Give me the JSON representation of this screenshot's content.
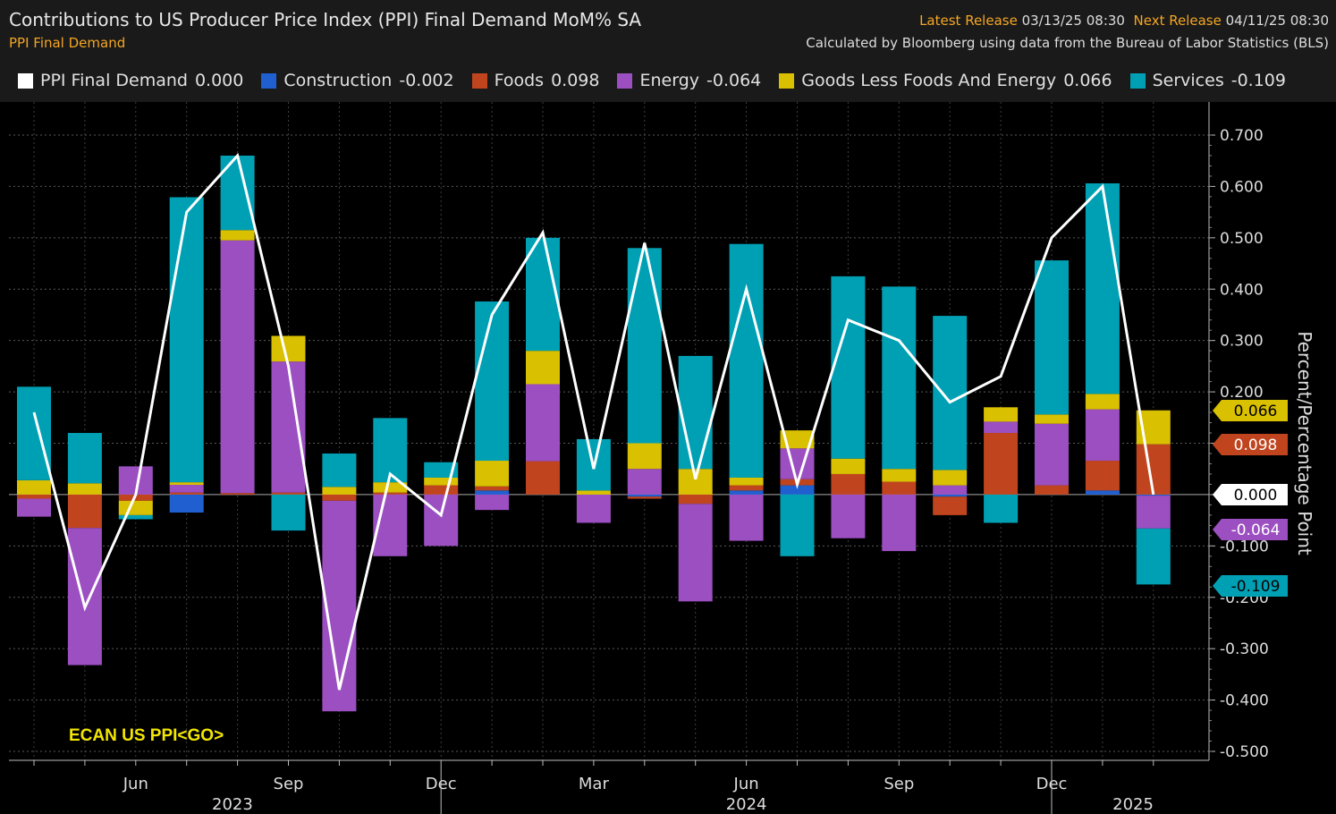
{
  "header": {
    "title": "Contributions to US Producer Price Index (PPI) Final Demand MoM% SA",
    "subtitle": "PPI Final Demand",
    "latest_label": "Latest Release",
    "latest_value": "03/13/25 08:30",
    "next_label": "Next Release",
    "next_value": "04/11/25 08:30",
    "source": "Calculated by Bloomberg using data from the Bureau of Labor Statistics (BLS)"
  },
  "legend": [
    {
      "name": "PPI Final Demand",
      "value": "0.000",
      "color": "#ffffff"
    },
    {
      "name": "Construction",
      "value": "-0.002",
      "color": "#1f5fd0"
    },
    {
      "name": "Foods",
      "value": "0.098",
      "color": "#c0451f"
    },
    {
      "name": "Energy",
      "value": "-0.064",
      "color": "#9b4fc0"
    },
    {
      "name": "Goods Less Foods And Energy",
      "value": "0.066",
      "color": "#d9c000"
    },
    {
      "name": "Services",
      "value": "-0.109",
      "color": "#00a0b4"
    }
  ],
  "footer_code": "ECAN US PPI<GO>",
  "chart_data": {
    "type": "bar",
    "stacked": true,
    "title": "Contributions to US Producer Price Index (PPI) Final Demand MoM% SA",
    "ylabel": "Percent/Percentage Point",
    "ylim": [
      -0.5,
      0.7
    ],
    "yticks": [
      -0.5,
      -0.4,
      -0.3,
      -0.2,
      -0.1,
      0.0,
      0.1,
      0.2,
      0.3,
      0.4,
      0.5,
      0.6,
      0.7
    ],
    "ytick_labels": [
      "-0.500",
      "-0.400",
      "-0.300",
      "-0.200",
      "-0.100",
      "0.000",
      "0.100",
      "0.200",
      "0.300",
      "0.400",
      "0.500",
      "0.600",
      "0.700"
    ],
    "categories": [
      "2023-04",
      "2023-05",
      "2023-06",
      "2023-07",
      "2023-08",
      "2023-09",
      "2023-10",
      "2023-11",
      "2023-12",
      "2024-01",
      "2024-02",
      "2024-03",
      "2024-04",
      "2024-05",
      "2024-06",
      "2024-07",
      "2024-08",
      "2024-09",
      "2024-10",
      "2024-11",
      "2024-12",
      "2025-01",
      "2025-02"
    ],
    "month_ticks": [
      {
        "index": 2,
        "label": "Jun"
      },
      {
        "index": 5,
        "label": "Sep"
      },
      {
        "index": 8,
        "label": "Dec"
      },
      {
        "index": 11,
        "label": "Mar"
      },
      {
        "index": 14,
        "label": "Jun"
      },
      {
        "index": 17,
        "label": "Sep"
      },
      {
        "index": 20,
        "label": "Dec"
      }
    ],
    "year_labels": [
      {
        "index": 3.9,
        "label": "2023"
      },
      {
        "index": 14,
        "label": "2024"
      },
      {
        "index": 21.6,
        "label": "2025"
      }
    ],
    "year_dividers": [
      8.0,
      20.0
    ],
    "series": [
      {
        "name": "Construction",
        "color": "#1f5fd0",
        "values": [
          0,
          0,
          0,
          -0.035,
          0,
          0,
          0,
          0,
          0,
          0.008,
          0,
          0,
          -0.004,
          0,
          0.008,
          0.018,
          0,
          0,
          -0.004,
          0,
          0,
          0.008,
          -0.002
        ]
      },
      {
        "name": "Foods",
        "color": "#c0451f",
        "values": [
          -0.008,
          -0.065,
          -0.012,
          0.004,
          0.003,
          0.004,
          -0.012,
          0.004,
          0.018,
          0.008,
          0.065,
          0,
          -0.004,
          -0.018,
          0.01,
          0.012,
          0.04,
          0.025,
          -0.036,
          0.12,
          0.018,
          0.058,
          0.098
        ]
      },
      {
        "name": "Energy",
        "color": "#9b4fc0",
        "values": [
          -0.035,
          -0.267,
          0.055,
          0.015,
          0.492,
          0.255,
          -0.41,
          -0.12,
          -0.1,
          -0.03,
          0.15,
          -0.055,
          0.05,
          -0.19,
          -0.09,
          0.06,
          -0.085,
          -0.11,
          0.018,
          0.022,
          0.12,
          0.1,
          -0.064
        ]
      },
      {
        "name": "Goods Less Foods And Energy",
        "color": "#d9c000",
        "values": [
          0.028,
          0.022,
          -0.028,
          0.005,
          0.02,
          0.05,
          0.015,
          0.02,
          0.015,
          0.05,
          0.065,
          0.008,
          0.05,
          0.05,
          0.015,
          0.035,
          0.03,
          0.025,
          0.03,
          0.028,
          0.018,
          0.03,
          0.066
        ]
      },
      {
        "name": "Services",
        "color": "#00a0b4",
        "values": [
          0.182,
          0.098,
          -0.008,
          0.555,
          0.145,
          -0.07,
          0.065,
          0.125,
          0.03,
          0.31,
          0.22,
          0.1,
          0.38,
          0.22,
          0.455,
          -0.12,
          0.355,
          0.355,
          0.3,
          -0.055,
          0.3,
          0.41,
          -0.109
        ]
      }
    ],
    "line": {
      "name": "PPI Final Demand",
      "color": "#ffffff",
      "values": [
        0.16,
        -0.22,
        0.0,
        0.55,
        0.66,
        0.25,
        -0.38,
        0.04,
        -0.04,
        0.35,
        0.51,
        0.05,
        0.49,
        0.03,
        0.4,
        0.02,
        0.34,
        0.3,
        0.18,
        0.23,
        0.5,
        0.6,
        0.0
      ]
    },
    "end_labels": [
      {
        "value": 0.066,
        "text": "0.066",
        "bg": "#d9c000",
        "fg": "#000000"
      },
      {
        "value": 0.098,
        "text": "0.098",
        "bg": "#c0451f",
        "fg": "#ffffff"
      },
      {
        "value": 0.0,
        "text": "0.000",
        "bg": "#ffffff",
        "fg": "#000000"
      },
      {
        "value": -0.064,
        "text": "-0.064",
        "bg": "#9b4fc0",
        "fg": "#ffffff"
      },
      {
        "value": -0.109,
        "text": "-0.109",
        "bg": "#00a0b4",
        "fg": "#000000"
      }
    ]
  }
}
